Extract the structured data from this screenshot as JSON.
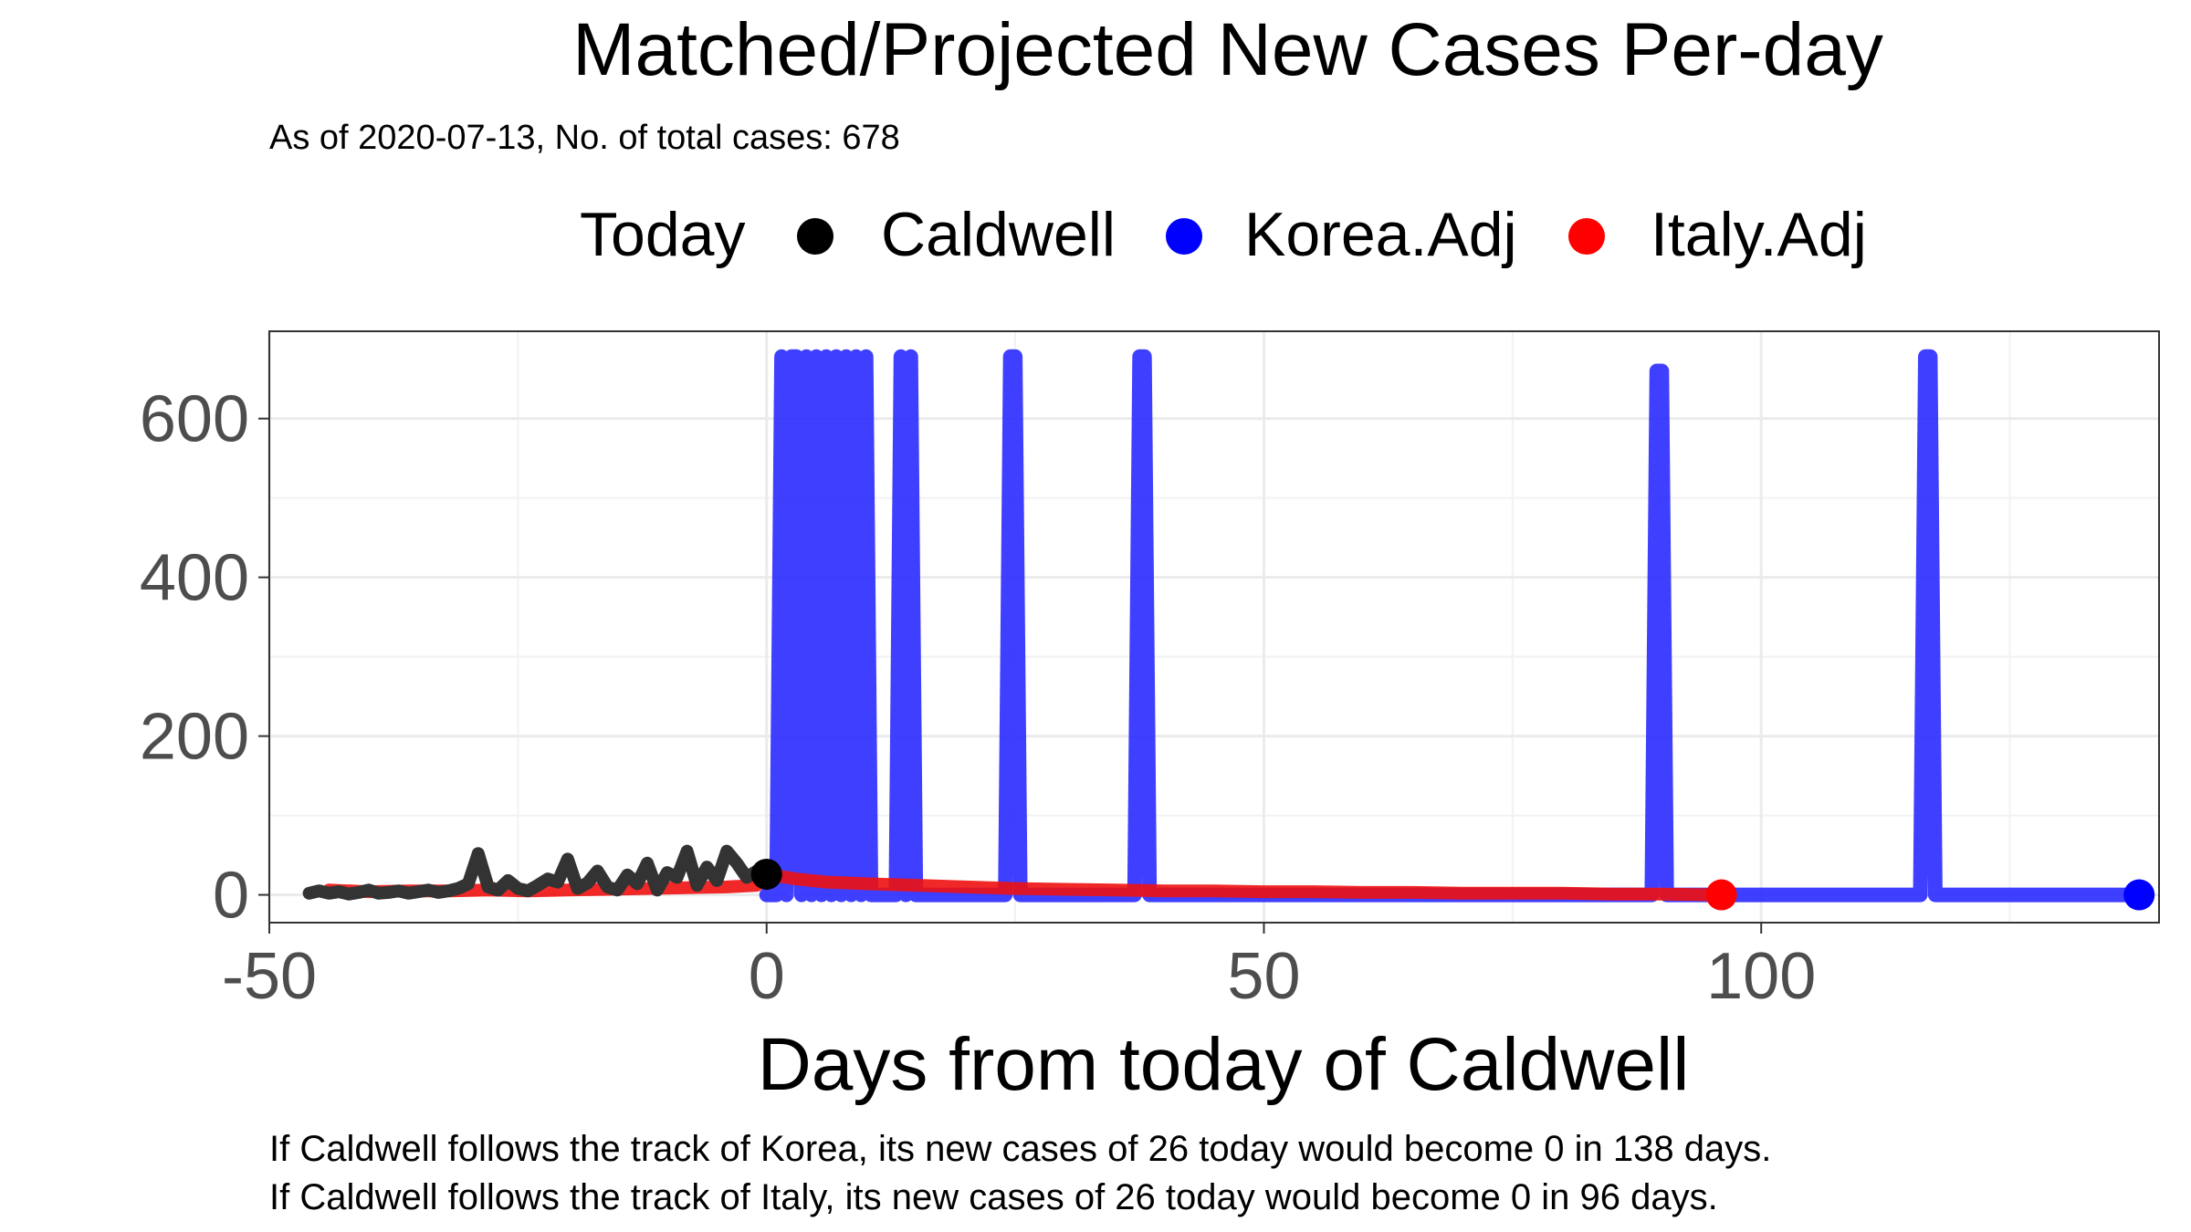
{
  "chart_data": {
    "type": "line",
    "title": "Matched/Projected New Cases Per-day",
    "subtitle": "As of 2020-07-13, No. of total cases: 678",
    "xlabel": "Days from today of Caldwell",
    "ylabel": "",
    "xlim": [
      -50,
      140
    ],
    "ylim": [
      -35,
      710
    ],
    "x_ticks": [
      -50,
      0,
      50,
      100
    ],
    "y_ticks": [
      0,
      200,
      400,
      600
    ],
    "grid": true,
    "legend_position": "top",
    "legend": {
      "title": "Today",
      "entries": [
        {
          "label": "Caldwell",
          "color": "#000000"
        },
        {
          "label": "Korea.Adj",
          "color": "#0000ff"
        },
        {
          "label": "Italy.Adj",
          "color": "#ff0000"
        }
      ]
    },
    "series": [
      {
        "name": "Caldwell",
        "color": "#333333",
        "x": [
          -46,
          -45,
          -44,
          -43,
          -42,
          -41,
          -40,
          -39,
          -38,
          -37,
          -36,
          -35,
          -34,
          -33,
          -32,
          -31,
          -30,
          -29,
          -28,
          -27,
          -26,
          -25,
          -24,
          -23,
          -22,
          -21,
          -20,
          -19,
          -18,
          -17,
          -16,
          -15,
          -14,
          -13,
          -12,
          -11,
          -10,
          -9,
          -8,
          -7,
          -6,
          -5,
          -4,
          -3,
          -2,
          -1,
          0
        ],
        "y": [
          2,
          5,
          2,
          4,
          1,
          3,
          6,
          2,
          3,
          5,
          2,
          4,
          6,
          3,
          5,
          8,
          14,
          52,
          10,
          6,
          18,
          8,
          5,
          12,
          20,
          16,
          45,
          8,
          15,
          30,
          10,
          6,
          25,
          14,
          40,
          6,
          28,
          22,
          55,
          12,
          35,
          18,
          55,
          40,
          22,
          30,
          26
        ]
      },
      {
        "name": "Korea.Adj",
        "color": "#2a2aff",
        "x": [
          0,
          1,
          1.5,
          2,
          2.5,
          3,
          3.5,
          4,
          4.5,
          5,
          5.5,
          6,
          6.5,
          7,
          7.5,
          8,
          8.5,
          9,
          9.5,
          10,
          10.5,
          11,
          12,
          13,
          13.5,
          14,
          14.5,
          15,
          16,
          20,
          23,
          24,
          24.5,
          25,
          25.5,
          26,
          27,
          30,
          36,
          37,
          37.5,
          38,
          38.5,
          39,
          40,
          50,
          60,
          70,
          80,
          88,
          89,
          89.5,
          90,
          90.5,
          91,
          92,
          100,
          110,
          115,
          116,
          116.5,
          117,
          117.5,
          118,
          119,
          125,
          130,
          138
        ],
        "y": [
          0,
          0,
          678,
          0,
          678,
          678,
          0,
          678,
          0,
          678,
          0,
          678,
          0,
          678,
          0,
          678,
          0,
          678,
          0,
          678,
          0,
          0,
          0,
          0,
          678,
          0,
          678,
          0,
          0,
          0,
          0,
          0,
          678,
          678,
          0,
          0,
          0,
          0,
          0,
          0,
          678,
          678,
          0,
          0,
          0,
          0,
          0,
          0,
          0,
          0,
          0,
          660,
          660,
          0,
          0,
          0,
          0,
          0,
          0,
          0,
          678,
          678,
          0,
          0,
          0,
          0,
          0,
          0
        ]
      },
      {
        "name": "Italy.Adj",
        "color": "#ee1111",
        "x": [
          -44,
          -40,
          -36,
          -32,
          -28,
          -24,
          -20,
          -16,
          -12,
          -8,
          -4,
          -1,
          0,
          3,
          6,
          10,
          15,
          20,
          25,
          30,
          35,
          40,
          45,
          50,
          55,
          60,
          65,
          70,
          75,
          80,
          85,
          90,
          96
        ],
        "y": [
          6,
          4,
          5,
          5,
          6,
          5,
          6,
          7,
          8,
          9,
          10,
          12,
          26,
          20,
          16,
          14,
          12,
          10,
          8,
          7,
          6,
          5,
          5,
          4,
          4,
          3,
          3,
          2,
          2,
          2,
          1,
          1,
          0
        ]
      }
    ],
    "endpoints": [
      {
        "series": "Caldwell",
        "x": 0,
        "y": 26,
        "color": "#000000"
      },
      {
        "series": "Korea.Adj",
        "x": 138,
        "y": 0,
        "color": "#0000ff"
      },
      {
        "series": "Italy.Adj",
        "x": 96,
        "y": 0,
        "color": "#ff0000"
      }
    ]
  },
  "footer": {
    "line1": "If Caldwell follows the track of Korea, its new cases of 26 today would become 0 in 138 days.",
    "line2": "If Caldwell follows the track of Italy, its new cases of 26 today would become 0 in 96 days."
  }
}
